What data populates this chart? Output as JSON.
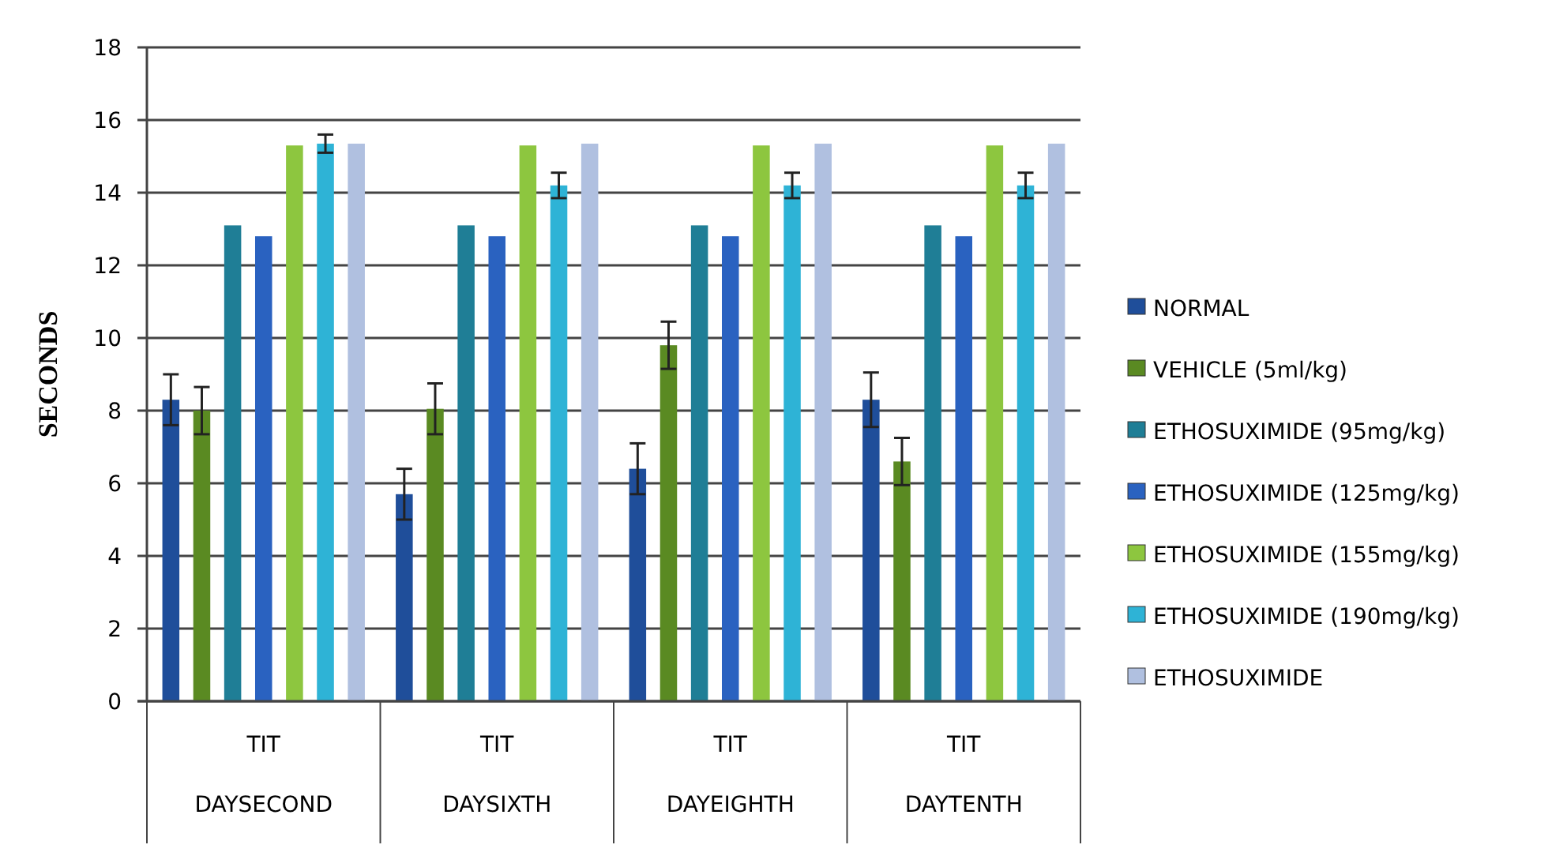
{
  "chart_data": {
    "type": "bar",
    "ylabel": "SECONDS",
    "categories": [
      "TIT\nDAYSECOND",
      "TIT\nDAYSIXTH",
      "TIT\nDAYEIGHTH",
      "TIT\nDAYTENTH"
    ],
    "series": [
      {
        "name": "NORMAL",
        "color": "#1f4e9a",
        "values": [
          8.3,
          5.7,
          6.4,
          8.3
        ],
        "errors": [
          0.7,
          0.7,
          0.7,
          0.75
        ]
      },
      {
        "name": "VEHICLE (5ml/kg)",
        "color": "#5a8a22",
        "values": [
          8.0,
          8.05,
          9.8,
          6.6
        ],
        "errors": [
          0.65,
          0.7,
          0.65,
          0.65
        ]
      },
      {
        "name": "ETHOSUXIMIDE (95mg/kg)",
        "color": "#1f7e96",
        "values": [
          13.1,
          13.1,
          13.1,
          13.1
        ]
      },
      {
        "name": "ETHOSUXIMIDE (125mg/kg)",
        "color": "#2a62c0",
        "values": [
          12.8,
          12.8,
          12.8,
          12.8
        ]
      },
      {
        "name": "ETHOSUXIMIDE (155mg/kg)",
        "color": "#8dc63f",
        "values": [
          15.3,
          15.3,
          15.3,
          15.3
        ]
      },
      {
        "name": "ETHOSUXIMIDE (190mg/kg)",
        "color": "#2eb3d6",
        "values": [
          15.35,
          14.2,
          14.2,
          14.2
        ],
        "errors": [
          0.25,
          0.35,
          0.35,
          0.35
        ]
      },
      {
        "name": "ETHOSUXIMIDE",
        "color": "#b0c0e0",
        "values": [
          15.35,
          15.35,
          15.35,
          15.35
        ]
      }
    ],
    "ylim": [
      0,
      18
    ],
    "yticks": [
      0,
      2,
      4,
      6,
      8,
      10,
      12,
      14,
      16,
      18
    ],
    "grid": "y",
    "legend": "right"
  }
}
